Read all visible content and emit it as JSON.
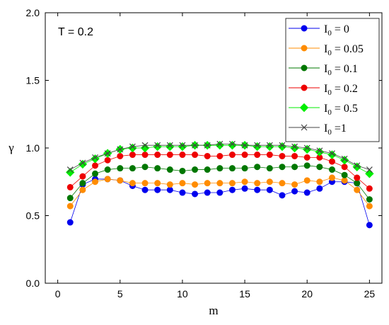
{
  "chart_data": {
    "type": "line",
    "annotation": "T = 0.2",
    "xlabel": "m",
    "ylabel": "γ",
    "xlim": [
      -1,
      26
    ],
    "ylim": [
      0.0,
      2.0
    ],
    "xticks": [
      0,
      5,
      10,
      15,
      20,
      25
    ],
    "yticks": [
      0.0,
      0.5,
      1.0,
      1.5,
      2.0
    ],
    "grid": false,
    "legend_position": "top-right",
    "x": [
      1,
      2,
      3,
      4,
      5,
      6,
      7,
      8,
      9,
      10,
      11,
      12,
      13,
      14,
      15,
      16,
      17,
      18,
      19,
      20,
      21,
      22,
      23,
      24,
      25
    ],
    "series": [
      {
        "label_main": "I",
        "label_sub": "0",
        "label_tail": " = 0",
        "color": "#0000ee",
        "marker": "circle",
        "values": [
          0.45,
          0.73,
          0.77,
          0.77,
          0.76,
          0.72,
          0.69,
          0.69,
          0.69,
          0.67,
          0.66,
          0.67,
          0.67,
          0.69,
          0.7,
          0.69,
          0.69,
          0.65,
          0.68,
          0.67,
          0.7,
          0.75,
          0.75,
          0.74,
          0.43
        ]
      },
      {
        "label_main": "I",
        "label_sub": "0",
        "label_tail": " = 0.05",
        "color": "#ff8c00",
        "marker": "circle",
        "values": [
          0.57,
          0.69,
          0.75,
          0.77,
          0.76,
          0.74,
          0.74,
          0.74,
          0.73,
          0.74,
          0.73,
          0.74,
          0.74,
          0.74,
          0.75,
          0.74,
          0.75,
          0.74,
          0.73,
          0.76,
          0.75,
          0.78,
          0.76,
          0.69,
          0.57
        ]
      },
      {
        "label_main": "I",
        "label_sub": "0",
        "label_tail": " = 0.1",
        "color": "#007700",
        "marker": "circle",
        "values": [
          0.63,
          0.74,
          0.81,
          0.84,
          0.85,
          0.85,
          0.86,
          0.85,
          0.84,
          0.83,
          0.84,
          0.84,
          0.85,
          0.85,
          0.85,
          0.86,
          0.85,
          0.86,
          0.86,
          0.87,
          0.86,
          0.84,
          0.8,
          0.74,
          0.62
        ]
      },
      {
        "label_main": "I",
        "label_sub": "0",
        "label_tail": " = 0.2",
        "color": "#ee0000",
        "marker": "circle",
        "values": [
          0.71,
          0.79,
          0.87,
          0.91,
          0.94,
          0.95,
          0.95,
          0.95,
          0.95,
          0.95,
          0.95,
          0.94,
          0.94,
          0.95,
          0.95,
          0.95,
          0.95,
          0.94,
          0.94,
          0.93,
          0.93,
          0.9,
          0.86,
          0.78,
          0.7
        ]
      },
      {
        "label_main": "I",
        "label_sub": "0",
        "label_tail": " = 0.5",
        "color": "#00ee00",
        "marker": "diamond",
        "values": [
          0.82,
          0.88,
          0.92,
          0.96,
          0.99,
          1.0,
          1.0,
          1.01,
          1.01,
          1.01,
          1.02,
          1.02,
          1.02,
          1.02,
          1.02,
          1.01,
          1.01,
          1.01,
          1.0,
          0.99,
          0.97,
          0.95,
          0.91,
          0.86,
          0.81
        ]
      },
      {
        "label_main": "I",
        "label_sub": "0",
        "label_tail": " =1",
        "color": "#444444",
        "marker": "x",
        "values": [
          0.84,
          0.89,
          0.93,
          0.96,
          0.99,
          1.01,
          1.02,
          1.02,
          1.02,
          1.02,
          1.02,
          1.02,
          1.03,
          1.03,
          1.02,
          1.02,
          1.02,
          1.02,
          1.01,
          1.0,
          0.98,
          0.96,
          0.92,
          0.87,
          0.84
        ]
      }
    ]
  }
}
